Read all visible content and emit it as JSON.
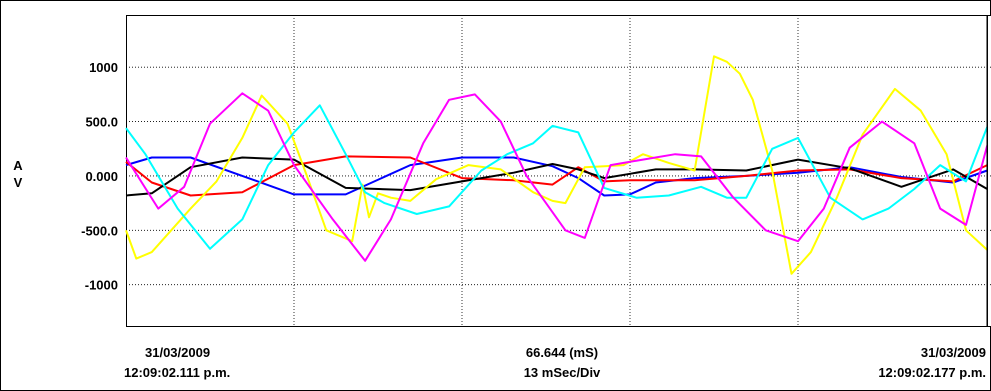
{
  "chart_data": {
    "type": "line",
    "y_axis_labels": [
      "A",
      "V"
    ],
    "y_ticks": [
      1000,
      500,
      0,
      -500,
      -1000
    ],
    "y_tick_labels": [
      "1000",
      "500.0",
      "0.000",
      "-500.0",
      "-1000"
    ],
    "ylim": [
      -1380,
      1480
    ],
    "xlim": [
      0,
      66.644
    ],
    "x_gridlines": [
      13,
      26,
      39,
      52
    ],
    "grid": true,
    "footer": {
      "left_date": "31/03/2009",
      "left_time": "12:09:02.111 p.m.",
      "center_span": "66.644 (mS)",
      "center_div": "13 mSec/Div",
      "right_date": "31/03/2009",
      "right_time": "12:09:02.177 p.m."
    },
    "series": [
      {
        "color": "#0000ff",
        "x": [
          0,
          2,
          5,
          9,
          13,
          17,
          22,
          26,
          30,
          33,
          35,
          37,
          39,
          41,
          44,
          48,
          52,
          56,
          60,
          64,
          66.644
        ],
        "y": [
          100,
          170,
          170,
          0,
          -170,
          -170,
          100,
          170,
          170,
          90,
          -20,
          -180,
          -170,
          -60,
          -20,
          0,
          30,
          80,
          -10,
          -60,
          50
        ]
      },
      {
        "color": "#ff0000",
        "x": [
          0,
          2,
          5,
          9,
          13,
          17,
          22,
          26,
          30,
          33,
          35,
          37,
          39,
          41,
          44,
          48,
          52,
          56,
          60,
          64,
          66.644
        ],
        "y": [
          130,
          -60,
          -180,
          -150,
          100,
          180,
          170,
          -20,
          -40,
          -80,
          80,
          -50,
          -40,
          -40,
          -40,
          0,
          50,
          60,
          -20,
          -50,
          100
        ]
      },
      {
        "color": "#000000",
        "x": [
          0,
          2,
          5,
          9,
          13,
          17,
          22,
          26,
          30,
          33,
          35,
          37,
          39,
          41,
          44,
          48,
          52,
          56,
          60,
          64,
          66.644
        ],
        "y": [
          -180,
          -160,
          80,
          170,
          150,
          -110,
          -130,
          -50,
          30,
          110,
          60,
          -20,
          20,
          60,
          60,
          50,
          150,
          70,
          -100,
          60,
          -120
        ]
      },
      {
        "color": "#ffff00",
        "x": [
          0,
          0.8,
          2,
          3.5,
          5,
          7,
          9,
          10.5,
          12.5,
          14,
          15.5,
          17.5,
          18.3,
          18.8,
          19.5,
          20.5,
          22,
          24,
          26.5,
          29,
          31.5,
          33,
          34,
          35.5,
          37,
          38.5,
          40,
          42,
          44,
          45.5,
          46.5,
          47.5,
          48.5,
          50,
          51.5,
          53,
          55,
          57,
          59.5,
          61.5,
          63.5,
          65,
          66.644
        ],
        "y": [
          -500,
          -760,
          -700,
          -500,
          -300,
          -50,
          350,
          740,
          480,
          0,
          -500,
          -600,
          -80,
          -380,
          -160,
          -200,
          -230,
          -30,
          100,
          60,
          -150,
          -230,
          -250,
          80,
          90,
          100,
          200,
          120,
          50,
          1100,
          1050,
          940,
          700,
          50,
          -900,
          -700,
          -200,
          380,
          800,
          600,
          200,
          -500,
          -680
        ]
      },
      {
        "color": "#00ffff",
        "x": [
          0,
          1.5,
          4,
          6.5,
          9,
          11,
          13,
          15,
          17,
          18.5,
          20,
          22.5,
          25,
          27.5,
          29.5,
          31.5,
          33,
          35,
          37,
          39.5,
          42,
          44.5,
          46.5,
          48,
          50,
          52,
          54.5,
          57,
          59,
          61,
          63,
          65,
          66.644
        ],
        "y": [
          440,
          200,
          -300,
          -670,
          -400,
          100,
          400,
          650,
          200,
          -150,
          -250,
          -350,
          -280,
          50,
          200,
          300,
          460,
          400,
          -110,
          -200,
          -180,
          -100,
          -200,
          -200,
          250,
          350,
          -200,
          -400,
          -300,
          -120,
          100,
          -50,
          450
        ]
      },
      {
        "color": "#ff00ff",
        "x": [
          0,
          2.5,
          4.5,
          6.5,
          9,
          11,
          13,
          16,
          18.5,
          20.5,
          23,
          25,
          27,
          29,
          31,
          32.5,
          34,
          35.5,
          37.5,
          40,
          42.5,
          44.5,
          47,
          49.5,
          52,
          54,
          56,
          58.5,
          61,
          63,
          65,
          66.644
        ],
        "y": [
          170,
          -300,
          -100,
          480,
          760,
          600,
          100,
          -400,
          -780,
          -400,
          300,
          700,
          750,
          500,
          0,
          -250,
          -500,
          -570,
          100,
          150,
          200,
          180,
          -200,
          -500,
          -600,
          -300,
          260,
          500,
          300,
          -300,
          -450,
          280
        ]
      }
    ]
  },
  "time_marker": {
    "x": 66.644
  }
}
